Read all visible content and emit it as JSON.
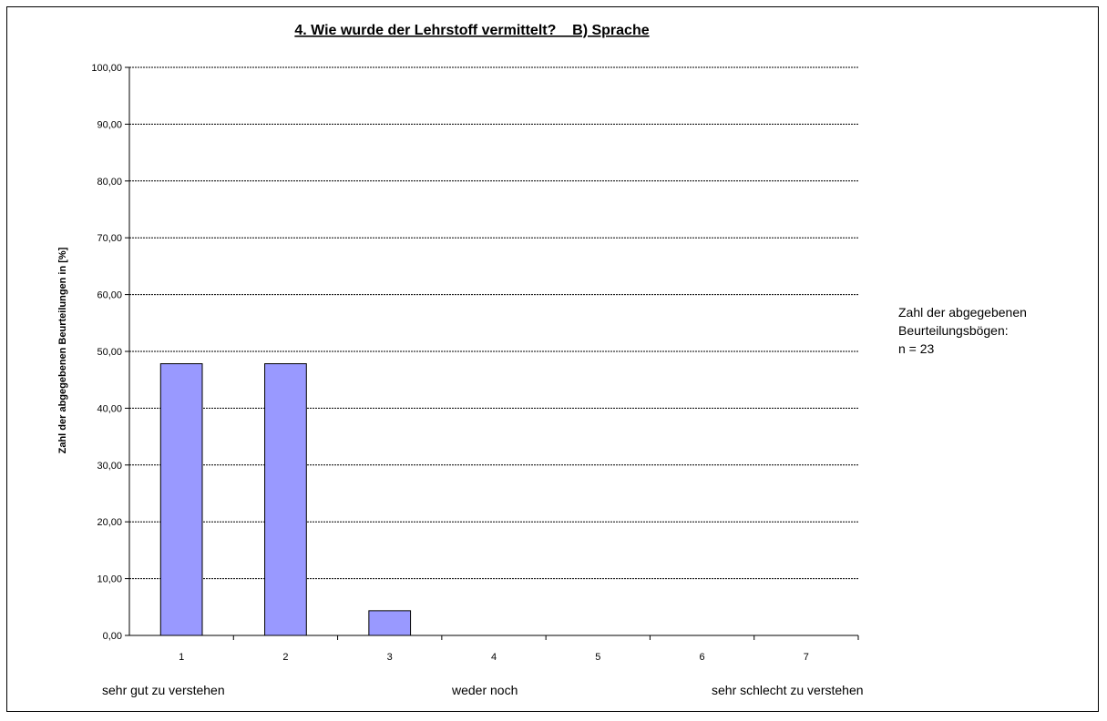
{
  "chart_data": {
    "type": "bar",
    "title": "4. Wie wurde der Lehrstoff vermittelt?    B) Sprache",
    "xlabel": "",
    "ylabel": "Zahl der abgegebenen Beurteilungen in [%]",
    "categories": [
      "1",
      "2",
      "3",
      "4",
      "5",
      "6",
      "7"
    ],
    "values": [
      47.83,
      47.83,
      4.35,
      0,
      0,
      0,
      0
    ],
    "ylim": [
      0,
      100
    ],
    "y_ticks": [
      "0,00",
      "10,00",
      "20,00",
      "30,00",
      "40,00",
      "50,00",
      "60,00",
      "70,00",
      "80,00",
      "90,00",
      "100,00"
    ],
    "grid": true,
    "bar_color": "#9999ff",
    "scale_labels": {
      "left": "sehr gut zu verstehen",
      "middle": "weder noch",
      "right": "sehr schlecht zu verstehen"
    },
    "side_note": {
      "line1": "Zahl der abgegebenen",
      "line2": "Beurteilungsbögen:",
      "line3": "n = 23"
    }
  }
}
